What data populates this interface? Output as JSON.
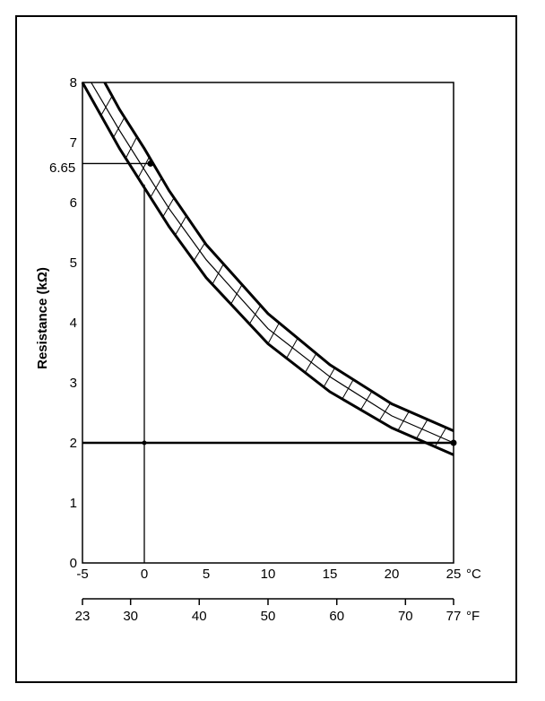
{
  "chart_data": {
    "type": "line",
    "ylabel": "Resistance (kΩ)",
    "xunit": "°C",
    "x2unit": "°F",
    "xlim": [
      -5,
      25
    ],
    "ylim": [
      0,
      8
    ],
    "x_ticks": [
      -5,
      0,
      5,
      10,
      15,
      20,
      25
    ],
    "y_ticks": [
      0,
      1,
      2,
      3,
      4,
      5,
      6,
      7,
      8
    ],
    "y_annotation_label": "6.65",
    "f_ticks": [
      {
        "label": "23",
        "c": -5
      },
      {
        "label": "30",
        "c": -1.11
      },
      {
        "label": "40",
        "c": 4.44
      },
      {
        "label": "50",
        "c": 10
      },
      {
        "label": "60",
        "c": 15.56
      },
      {
        "label": "70",
        "c": 21.11
      },
      {
        "label": "77",
        "c": 25
      }
    ],
    "series": [
      {
        "role": "upper",
        "x": [
          -3.2,
          -2,
          0,
          2,
          5,
          10,
          15,
          20,
          25
        ],
        "y": [
          8.0,
          7.55,
          6.9,
          6.2,
          5.3,
          4.15,
          3.3,
          2.65,
          2.2
        ]
      },
      {
        "role": "center",
        "x": [
          -4.3,
          -2,
          0,
          2,
          5,
          10,
          15,
          20,
          25
        ],
        "y": [
          8.0,
          7.2,
          6.55,
          5.9,
          5.05,
          3.9,
          3.1,
          2.45,
          2.0
        ]
      },
      {
        "role": "lower",
        "x": [
          -5,
          -2,
          0,
          2,
          5,
          10,
          15,
          20,
          25
        ],
        "y": [
          8.0,
          6.9,
          6.25,
          5.6,
          4.75,
          3.65,
          2.85,
          2.25,
          1.8
        ]
      }
    ],
    "reference_points": [
      {
        "x": 0.5,
        "y": 6.65
      },
      {
        "x": 25,
        "y": 2.0
      }
    ],
    "reference_lines": {
      "y_levels": [
        6.65,
        2.0
      ],
      "x_levels": [
        0
      ]
    }
  }
}
